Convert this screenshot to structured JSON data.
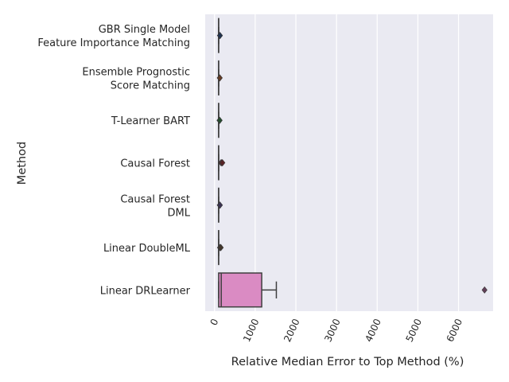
{
  "chart_data": {
    "type": "box",
    "orientation": "horizontal",
    "xlabel": "Relative Median Error to Top Method (%)",
    "ylabel": "Method",
    "xlim": [
      -230,
      6850
    ],
    "xticks": [
      0,
      1000,
      2000,
      3000,
      4000,
      5000,
      6000
    ],
    "grid": true,
    "categories": [
      [
        "GBR Single Model",
        "Feature Importance Matching"
      ],
      [
        "Ensemble Prognostic",
        "Score Matching"
      ],
      [
        "T-Learner BART"
      ],
      [
        "Causal Forest"
      ],
      [
        "Causal Forest",
        "DML"
      ],
      [
        "Linear DoubleML"
      ],
      [
        "Linear DRLearner"
      ]
    ],
    "boxes": [
      {
        "whisker_low": 100,
        "q1": 100,
        "median": 100,
        "q3": 100,
        "whisker_high": 100,
        "outliers": [
          130,
          135
        ],
        "color": "#4c72b0"
      },
      {
        "whisker_low": 100,
        "q1": 100,
        "median": 100,
        "q3": 100,
        "whisker_high": 100,
        "outliers": [
          125,
          130
        ],
        "color": "#dd8452"
      },
      {
        "whisker_low": 100,
        "q1": 100,
        "median": 100,
        "q3": 100,
        "whisker_high": 100,
        "outliers": [
          120,
          128
        ],
        "color": "#55a868"
      },
      {
        "whisker_low": 100,
        "q1": 100,
        "median": 100,
        "q3": 100,
        "whisker_high": 100,
        "outliers": [
          160,
          180,
          195
        ],
        "color": "#c44e52"
      },
      {
        "whisker_low": 100,
        "q1": 100,
        "median": 100,
        "q3": 100,
        "whisker_high": 100,
        "outliers": [
          125,
          135
        ],
        "color": "#8172b3"
      },
      {
        "whisker_low": 100,
        "q1": 100,
        "median": 100,
        "q3": 100,
        "whisker_high": 100,
        "outliers": [
          130,
          145,
          155
        ],
        "color": "#937860"
      },
      {
        "whisker_low": 100,
        "q1": 100,
        "median": 165,
        "q3": 1160,
        "whisker_high": 1520,
        "outliers": [
          6640
        ],
        "color": "#da8bc3"
      }
    ]
  }
}
